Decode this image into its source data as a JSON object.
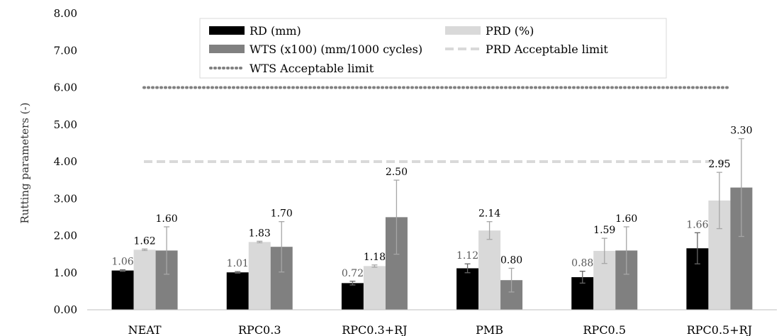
{
  "chart_data": {
    "type": "bar",
    "ylabel": "Rutting parameters (-)",
    "ylim": [
      0,
      8
    ],
    "yticks": [
      "0.00",
      "1.00",
      "2.00",
      "3.00",
      "4.00",
      "5.00",
      "6.00",
      "7.00",
      "8.00"
    ],
    "grid": false,
    "legend_position": "top",
    "categories": [
      "NEAT",
      "RPC0.3",
      "RPC0.3+RJ",
      "PMB",
      "RPC0.5",
      "RPC0.5+RJ"
    ],
    "series": [
      {
        "name": "RD (mm)",
        "color": "#000000",
        "values": [
          1.06,
          1.01,
          0.72,
          1.12,
          0.88,
          1.66
        ],
        "labels": [
          "1.06",
          "1.01",
          "0.72",
          "1.12",
          "0.88",
          "1.66"
        ],
        "errors": [
          0.02,
          0.02,
          0.05,
          0.12,
          0.16,
          0.42
        ]
      },
      {
        "name": "PRD (%)",
        "color": "#d9d9d9",
        "values": [
          1.62,
          1.83,
          1.18,
          2.14,
          1.59,
          2.95
        ],
        "labels": [
          "1.62",
          "1.83",
          "1.18",
          "2.14",
          "1.59",
          "2.95"
        ],
        "errors": [
          0.02,
          0.02,
          0.03,
          0.24,
          0.34,
          0.76
        ]
      },
      {
        "name": "WTS (x100) (mm/1000 cycles)",
        "color": "#808080",
        "values": [
          1.6,
          1.7,
          2.5,
          0.8,
          1.6,
          3.3
        ],
        "labels": [
          "1.60",
          "1.70",
          "2.50",
          "0.80",
          "1.60",
          "3.30"
        ],
        "errors": [
          0.64,
          0.68,
          1.0,
          0.32,
          0.64,
          1.32
        ]
      }
    ],
    "reference_lines": [
      {
        "name": "PRD Acceptable limit",
        "value": 4.0,
        "color": "#d9d9d9",
        "style": "dashed"
      },
      {
        "name": "WTS Acceptable limit",
        "value": 6.0,
        "color": "#808080",
        "style": "dotted"
      }
    ]
  }
}
